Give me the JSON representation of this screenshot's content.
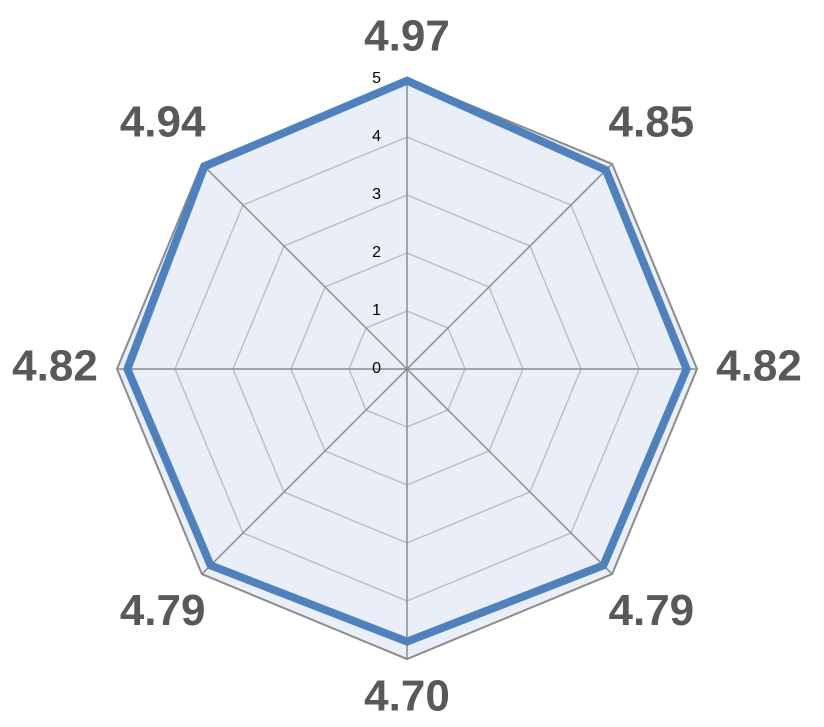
{
  "chart_data": {
    "type": "radar",
    "categories": [
      null,
      null,
      null,
      null,
      null,
      null,
      null,
      null
    ],
    "series": [
      {
        "color": "#4f81bd",
        "values": [
          4.97,
          4.85,
          4.82,
          4.79,
          4.7,
          4.79,
          4.82,
          4.94
        ],
        "value_labels": [
          "4.97",
          "4.85",
          "4.82",
          "4.79",
          "4.70",
          "4.79",
          "4.82",
          "4.94"
        ]
      }
    ],
    "ylim": [
      0,
      5
    ],
    "yticks": [
      0,
      1,
      2,
      3,
      4,
      5
    ],
    "grid": true
  }
}
